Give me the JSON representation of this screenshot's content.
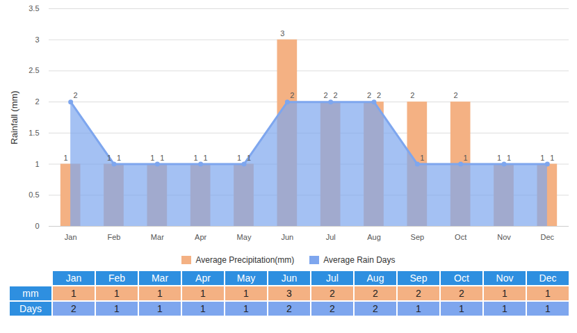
{
  "chart_data": {
    "type": "bar",
    "categories": [
      "Jan",
      "Feb",
      "Mar",
      "Apr",
      "May",
      "Jun",
      "Jul",
      "Aug",
      "Sep",
      "Oct",
      "Nov",
      "Dec"
    ],
    "series": [
      {
        "name": "Average Precipitation(mm)",
        "type": "bar",
        "color": "#F4B183",
        "values": [
          1,
          1,
          1,
          1,
          1,
          3,
          2,
          2,
          2,
          2,
          1,
          1
        ]
      },
      {
        "name": "Average Rain Days",
        "type": "area",
        "color": "#7EA6EE",
        "values": [
          2,
          1,
          1,
          1,
          1,
          2,
          2,
          2,
          1,
          1,
          1,
          1
        ]
      }
    ],
    "y_label": "Rainfall (mm)",
    "ylim": [
      0,
      3.5
    ],
    "yticks": [
      0,
      0.5,
      1,
      1.5,
      2,
      2.5,
      3,
      3.5
    ],
    "grid": true,
    "data_labels": true,
    "legend": "bottom"
  },
  "table": {
    "header": [
      "Jan",
      "Feb",
      "Mar",
      "Apr",
      "May",
      "Jun",
      "Jul",
      "Aug",
      "Sep",
      "Oct",
      "Nov",
      "Dec"
    ],
    "rows": [
      {
        "label": "mm",
        "values": [
          1,
          1,
          1,
          1,
          1,
          3,
          2,
          2,
          2,
          2,
          1,
          1
        ]
      },
      {
        "label": "Days",
        "values": [
          2,
          1,
          1,
          1,
          1,
          2,
          2,
          2,
          1,
          1,
          1,
          1
        ]
      }
    ]
  }
}
